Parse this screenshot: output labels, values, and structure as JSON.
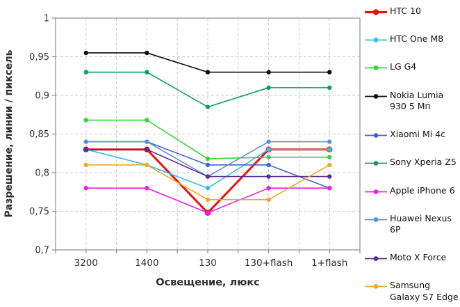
{
  "chart_data": {
    "type": "line",
    "title": "",
    "xlabel": "Освещение,  люкс",
    "ylabel": "Разрешение,  линии / пиксель",
    "categories": [
      "3200",
      "1400",
      "130",
      "130+flash",
      "1+flash"
    ],
    "ylim": [
      0.7,
      1.0
    ],
    "grid": true,
    "legend_position": "right",
    "yticks": [
      {
        "label": "0,7",
        "value": 0.7
      },
      {
        "label": "0,75",
        "value": 0.75
      },
      {
        "label": "0,8",
        "value": 0.8
      },
      {
        "label": "0,85",
        "value": 0.85
      },
      {
        "label": "0,9",
        "value": 0.9
      },
      {
        "label": "0,95",
        "value": 0.95
      },
      {
        "label": "1",
        "value": 1.0
      }
    ],
    "series": [
      {
        "name": "HTC 10",
        "color": "#e8100c",
        "line_width": 3,
        "values": [
          0.83,
          0.83,
          0.748,
          0.83,
          0.83
        ]
      },
      {
        "name": "HTC One M8",
        "color": "#33bdf2",
        "line_width": 1.6,
        "values": [
          0.83,
          0.81,
          0.78,
          0.83,
          0.83
        ]
      },
      {
        "name": "LG G4",
        "color": "#33d633",
        "line_width": 1.6,
        "values": [
          0.868,
          0.868,
          0.818,
          0.82,
          0.82
        ]
      },
      {
        "name": "Nokia Lumia 930 5 Мп",
        "color": "#0d0d0d",
        "line_width": 1.6,
        "values": [
          0.955,
          0.955,
          0.93,
          0.93,
          0.93
        ]
      },
      {
        "name": "Xiaomi Mi 4c",
        "color": "#3f63d6",
        "line_width": 1.6,
        "values": [
          0.84,
          0.84,
          0.81,
          0.81,
          0.78
        ]
      },
      {
        "name": "Sony Xperia Z5",
        "color": "#0b9d62",
        "line_width": 1.6,
        "values": [
          0.93,
          0.93,
          0.885,
          0.91,
          0.91
        ]
      },
      {
        "name": "Apple iPhone 6",
        "color": "#ee1cee",
        "line_width": 1.6,
        "values": [
          0.78,
          0.78,
          0.748,
          0.78,
          0.78
        ]
      },
      {
        "name": "Huawei Nexus 6P",
        "color": "#5e93d1",
        "line_width": 1.6,
        "values": [
          0.84,
          0.84,
          0.795,
          0.84,
          0.84
        ]
      },
      {
        "name": "Moto X Force",
        "color": "#5c2d91",
        "line_width": 1.6,
        "values": [
          0.83,
          0.83,
          0.795,
          0.795,
          0.795
        ]
      },
      {
        "name": "Samsung Galaxy S7 Edge",
        "color": "#f2a81e",
        "line_width": 1.6,
        "values": [
          0.81,
          0.81,
          0.765,
          0.765,
          0.81
        ]
      }
    ],
    "style": {
      "axis_color": "#8c8c8c",
      "grid_color": "#c9c9c9",
      "tick_text_color": "#2e2e2e"
    }
  }
}
